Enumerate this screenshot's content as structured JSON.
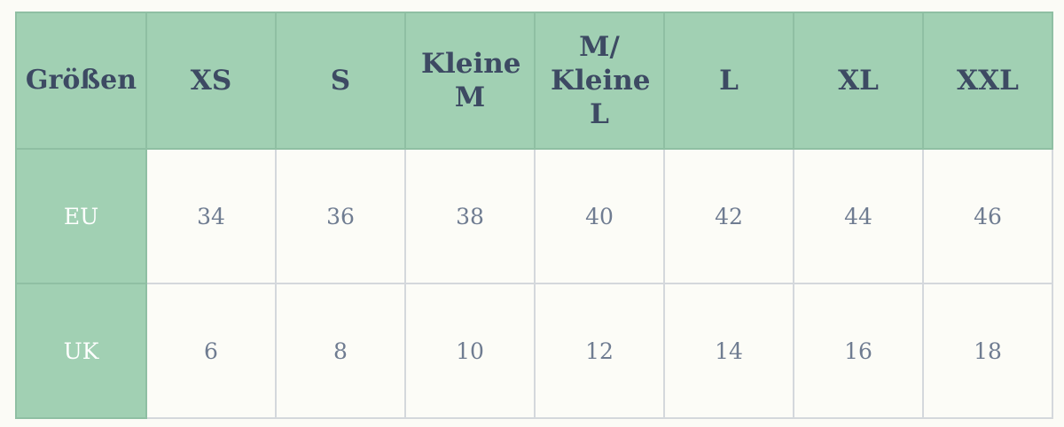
{
  "table": {
    "headers": [
      "Größen",
      "XS",
      "S",
      "Kleine M",
      "M/ Kleine L",
      "L",
      "XL",
      "XXL"
    ],
    "rows": [
      {
        "label": "EU",
        "values": [
          "34",
          "36",
          "38",
          "40",
          "42",
          "44",
          "46"
        ]
      },
      {
        "label": "UK",
        "values": [
          "6",
          "8",
          "10",
          "12",
          "14",
          "16",
          "18"
        ]
      }
    ]
  },
  "colors": {
    "header_bg": "#a1d0b3",
    "header_text": "#3d4a63",
    "cell_bg": "#fcfcf7",
    "cell_text": "#6f7c91"
  }
}
